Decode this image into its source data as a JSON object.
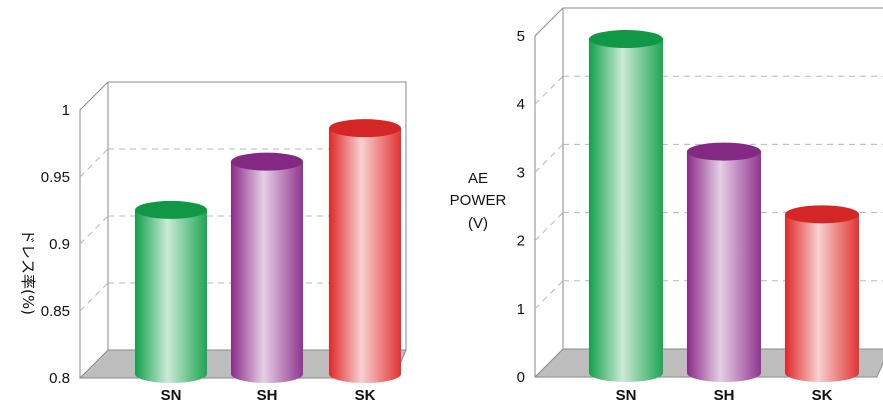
{
  "chart_data": [
    {
      "type": "bar",
      "categories": [
        "SN",
        "SH",
        "SK"
      ],
      "values": [
        0.915,
        0.951,
        0.976
      ],
      "ylabel": "ドレス率(%)",
      "ylim": [
        0.8,
        1.0
      ],
      "yticks": [
        "0.8",
        "0.85",
        "0.9",
        "0.95",
        "1"
      ],
      "grid": true,
      "colors": [
        "#12a04a",
        "#8a2a8a",
        "#e02828"
      ]
    },
    {
      "type": "bar",
      "categories": [
        "SN",
        "SH",
        "SK"
      ],
      "values": [
        4.75,
        3.1,
        2.18
      ],
      "ylabel_lines": [
        "AE",
        "POWER",
        "(V)"
      ],
      "ylim": [
        0,
        5
      ],
      "yticks": [
        "0",
        "1",
        "2",
        "3",
        "4",
        "5"
      ],
      "grid": true,
      "colors": [
        "#12a04a",
        "#8a2a8a",
        "#e02828"
      ]
    }
  ]
}
